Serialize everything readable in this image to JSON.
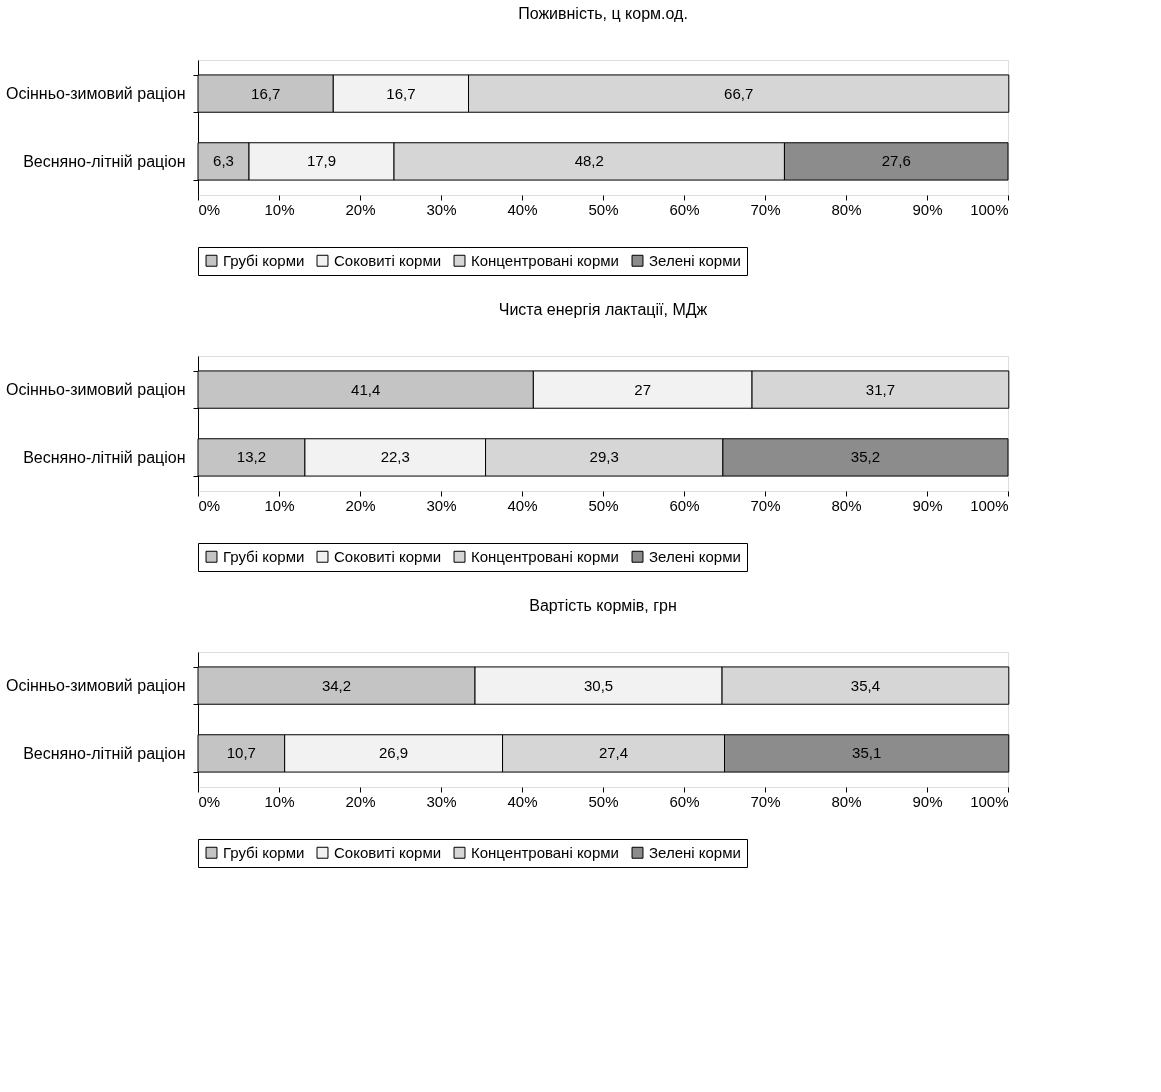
{
  "chart_data": [
    {
      "type": "bar",
      "orientation": "horizontal",
      "stacked": true,
      "title": "Поживність, ц корм.од.",
      "categories": [
        "Осінньо-зимовий раціон",
        "Весняно-літній раціон"
      ],
      "xlim": [
        0,
        100
      ],
      "xticks": [
        {
          "value": 0,
          "label": "0%"
        },
        {
          "value": 10,
          "label": "10%"
        },
        {
          "value": 20,
          "label": "20%"
        },
        {
          "value": 30,
          "label": "30%"
        },
        {
          "value": 40,
          "label": "40%"
        },
        {
          "value": 50,
          "label": "50%"
        },
        {
          "value": 60,
          "label": "60%"
        },
        {
          "value": 70,
          "label": "70%"
        },
        {
          "value": 80,
          "label": "80%"
        },
        {
          "value": 90,
          "label": "90%"
        },
        {
          "value": 100,
          "label": "100%"
        }
      ],
      "grid": false,
      "legend": "bottom",
      "series": [
        {
          "name": "Грубі корми",
          "color": "#c4c4c4",
          "values": [
            16.7,
            6.3
          ],
          "value_labels": [
            "16,7",
            "6,3"
          ]
        },
        {
          "name": "Соковиті корми",
          "color": "#f2f2f2",
          "values": [
            16.7,
            17.9
          ],
          "value_labels": [
            "16,7",
            "17,9"
          ]
        },
        {
          "name": "Концентровані корми",
          "color": "#d6d6d6",
          "values": [
            66.7,
            48.2
          ],
          "value_labels": [
            "66,7",
            "48,2"
          ]
        },
        {
          "name": "Зелені корми",
          "color": "#8c8c8c",
          "values": [
            null,
            27.6
          ],
          "value_labels": [
            null,
            "27,6"
          ]
        }
      ]
    },
    {
      "type": "bar",
      "orientation": "horizontal",
      "stacked": true,
      "title": "Чиста енергія лактації, МДж",
      "categories": [
        "Осінньо-зимовий раціон",
        "Весняно-літній раціон"
      ],
      "xlim": [
        0,
        100
      ],
      "xticks": [
        {
          "value": 0,
          "label": "0%"
        },
        {
          "value": 10,
          "label": "10%"
        },
        {
          "value": 20,
          "label": "20%"
        },
        {
          "value": 30,
          "label": "30%"
        },
        {
          "value": 40,
          "label": "40%"
        },
        {
          "value": 50,
          "label": "50%"
        },
        {
          "value": 60,
          "label": "60%"
        },
        {
          "value": 70,
          "label": "70%"
        },
        {
          "value": 80,
          "label": "80%"
        },
        {
          "value": 90,
          "label": "90%"
        },
        {
          "value": 100,
          "label": "100%"
        }
      ],
      "grid": false,
      "legend": "bottom",
      "series": [
        {
          "name": "Грубі корми",
          "color": "#c4c4c4",
          "values": [
            41.4,
            13.2
          ],
          "value_labels": [
            "41,4",
            "13,2"
          ]
        },
        {
          "name": "Соковиті корми",
          "color": "#f2f2f2",
          "values": [
            27,
            22.3
          ],
          "value_labels": [
            "27",
            "22,3"
          ]
        },
        {
          "name": "Концентровані корми",
          "color": "#d6d6d6",
          "values": [
            31.7,
            29.3
          ],
          "value_labels": [
            "31,7",
            "29,3"
          ]
        },
        {
          "name": "Зелені корми",
          "color": "#8c8c8c",
          "values": [
            null,
            35.2
          ],
          "value_labels": [
            null,
            "35,2"
          ]
        }
      ]
    },
    {
      "type": "bar",
      "orientation": "horizontal",
      "stacked": true,
      "title": "Вартість кормів, грн",
      "categories": [
        "Осінньо-зимовий раціон",
        "Весняно-літній раціон"
      ],
      "xlim": [
        0,
        100
      ],
      "xticks": [
        {
          "value": 0,
          "label": "0%"
        },
        {
          "value": 10,
          "label": "10%"
        },
        {
          "value": 20,
          "label": "20%"
        },
        {
          "value": 30,
          "label": "30%"
        },
        {
          "value": 40,
          "label": "40%"
        },
        {
          "value": 50,
          "label": "50%"
        },
        {
          "value": 60,
          "label": "60%"
        },
        {
          "value": 70,
          "label": "70%"
        },
        {
          "value": 80,
          "label": "80%"
        },
        {
          "value": 90,
          "label": "90%"
        },
        {
          "value": 100,
          "label": "100%"
        }
      ],
      "grid": false,
      "legend": "bottom",
      "series": [
        {
          "name": "Грубі корми",
          "color": "#c4c4c4",
          "values": [
            34.2,
            10.7
          ],
          "value_labels": [
            "34,2",
            "10,7"
          ]
        },
        {
          "name": "Соковиті корми",
          "color": "#f2f2f2",
          "values": [
            30.5,
            26.9
          ],
          "value_labels": [
            "30,5",
            "26,9"
          ]
        },
        {
          "name": "Концентровані корми",
          "color": "#d6d6d6",
          "values": [
            35.4,
            27.4
          ],
          "value_labels": [
            "35,4",
            "27,4"
          ]
        },
        {
          "name": "Зелені корми",
          "color": "#8c8c8c",
          "values": [
            null,
            35.1
          ],
          "value_labels": [
            null,
            "35,1"
          ]
        }
      ]
    }
  ]
}
